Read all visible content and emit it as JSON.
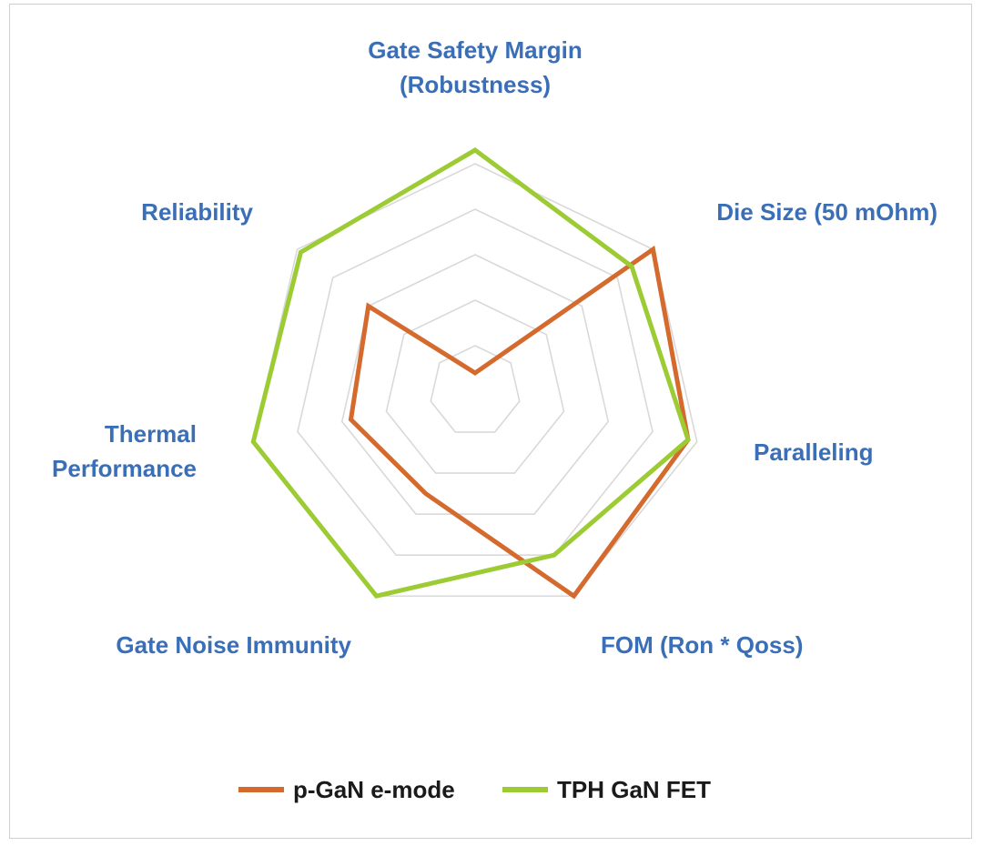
{
  "chart_data": {
    "type": "radar",
    "axes": [
      [
        "Gate Safety Margin",
        "(Robustness)"
      ],
      [
        "Die Size (50 mOhm)"
      ],
      [
        "Paralleling"
      ],
      [
        "FOM (Ron * Qoss)"
      ],
      [
        "Gate Noise Immunity"
      ],
      [
        "Thermal",
        "Performance"
      ],
      [
        "Reliability"
      ]
    ],
    "grid_levels": 5,
    "rlim": [
      0,
      5
    ],
    "grid": true,
    "legend_position": "bottom",
    "series": [
      {
        "name": "p-GaN e-mode",
        "color": "#d46a2e",
        "values": [
          0.4,
          5.0,
          4.8,
          5.0,
          2.5,
          2.8,
          3.0
        ]
      },
      {
        "name": "TPH GaN FET",
        "color": "#9ccb34",
        "values": [
          5.3,
          4.4,
          4.8,
          4.0,
          5.0,
          5.0,
          4.9
        ]
      }
    ]
  }
}
